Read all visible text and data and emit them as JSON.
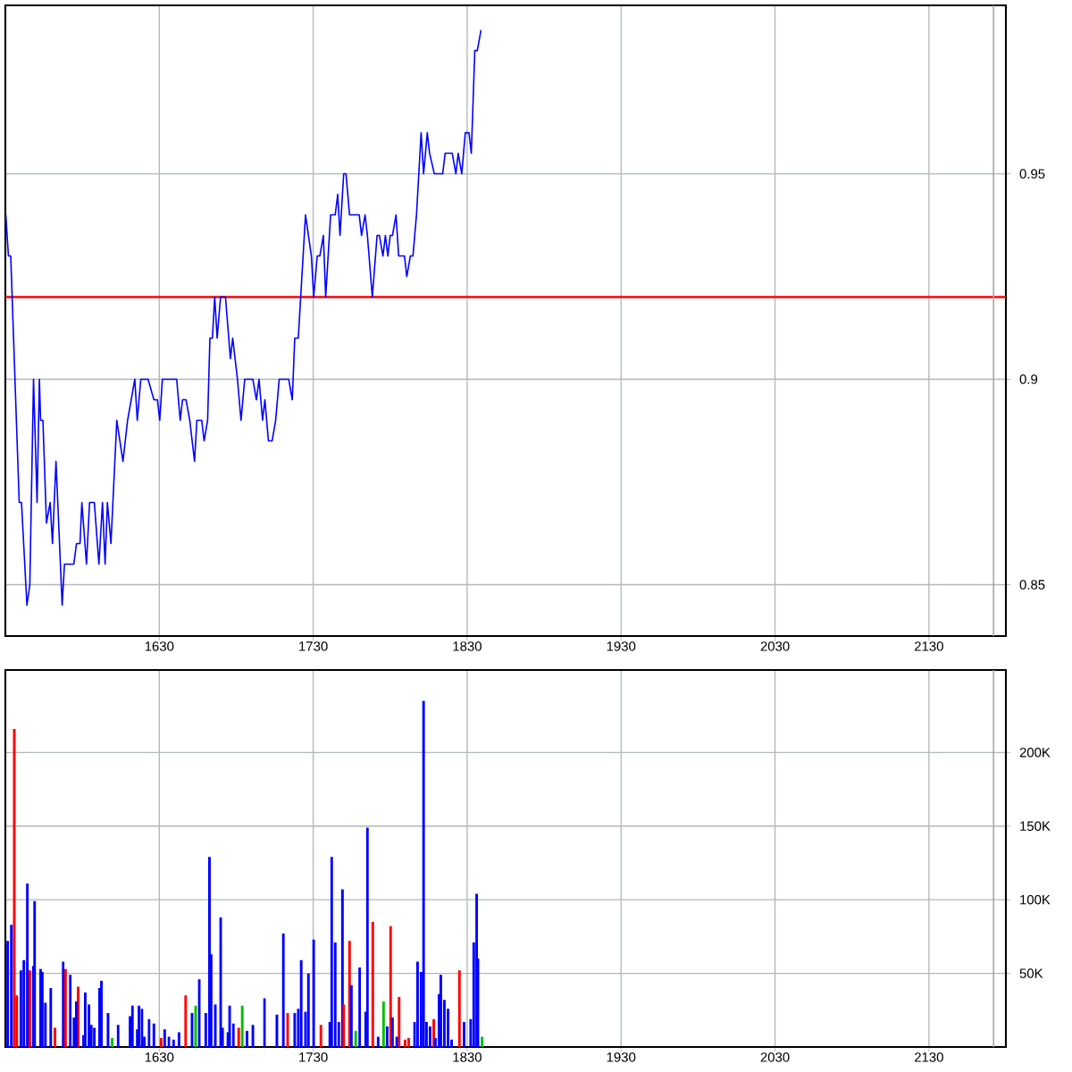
{
  "chart_data": [
    {
      "type": "line",
      "color": "#0000ff",
      "x": [
        1530.3,
        1532,
        1533.5,
        1539,
        1540.5,
        1544,
        1545.9,
        1548.3,
        1550.6,
        1552.1,
        1552.9,
        1554.4,
        1556.7,
        1559.1,
        1560.6,
        1562.9,
        1566.9,
        1568.4,
        1574.5,
        1576.2,
        1578.5,
        1579.7,
        1582.7,
        1584.7,
        1587.8,
        1590.8,
        1593.1,
        1594.8,
        1596.3,
        1598.6,
        1602.4,
        1606.4,
        1609.4,
        1614.1,
        1615.7,
        1618,
        1622.7,
        1626.5,
        1628.8,
        1630.3,
        1632,
        1641.3,
        1643.6,
        1645.1,
        1647.4,
        1649.8,
        1652.9,
        1654.4,
        1657.6,
        1659.1,
        1661.4,
        1662.9,
        1664.5,
        1666,
        1667.6,
        1669.8,
        1673,
        1676.2,
        1677.7,
        1680.8,
        1683.1,
        1685.5,
        1690.8,
        1693.1,
        1694.8,
        1697.1,
        1698.6,
        1700.9,
        1703.3,
        1705.6,
        1707.9,
        1714.1,
        1716.4,
        1718,
        1720.3,
        1725,
        1728.8,
        1730.3,
        1732.6,
        1734.3,
        1736.6,
        1738.1,
        1741.3,
        1744.3,
        1745.9,
        1747.4,
        1749.8,
        1751.3,
        1753.6,
        1759.9,
        1761.4,
        1763.7,
        1765.2,
        1768.4,
        1771.5,
        1773,
        1775.3,
        1776.9,
        1778.5,
        1780,
        1781.5,
        1783.8,
        1785.5,
        1789.3,
        1790.8,
        1793.1,
        1794.8,
        1797.1,
        1800.1,
        1801.7,
        1804.1,
        1805.6,
        1808.7,
        1814.1,
        1815.7,
        1820.3,
        1822.7,
        1824.2,
        1826.5,
        1828.8,
        1831.2,
        1832.7,
        1835,
        1836.6,
        1839
      ],
      "values": [
        0.94,
        0.93,
        0.93,
        0.87,
        0.87,
        0.845,
        0.85,
        0.9,
        0.87,
        0.9,
        0.89,
        0.89,
        0.865,
        0.87,
        0.86,
        0.88,
        0.845,
        0.855,
        0.855,
        0.86,
        0.86,
        0.87,
        0.855,
        0.87,
        0.87,
        0.855,
        0.87,
        0.855,
        0.87,
        0.86,
        0.89,
        0.88,
        0.89,
        0.9,
        0.89,
        0.9,
        0.9,
        0.895,
        0.895,
        0.89,
        0.9,
        0.9,
        0.89,
        0.895,
        0.895,
        0.89,
        0.88,
        0.89,
        0.89,
        0.885,
        0.89,
        0.91,
        0.91,
        0.92,
        0.91,
        0.92,
        0.92,
        0.905,
        0.91,
        0.9,
        0.89,
        0.9,
        0.9,
        0.895,
        0.9,
        0.89,
        0.895,
        0.885,
        0.885,
        0.89,
        0.9,
        0.9,
        0.895,
        0.91,
        0.91,
        0.94,
        0.93,
        0.92,
        0.93,
        0.93,
        0.935,
        0.92,
        0.94,
        0.94,
        0.945,
        0.935,
        0.95,
        0.95,
        0.94,
        0.94,
        0.935,
        0.94,
        0.935,
        0.92,
        0.935,
        0.935,
        0.93,
        0.935,
        0.93,
        0.935,
        0.935,
        0.94,
        0.93,
        0.93,
        0.925,
        0.93,
        0.93,
        0.94,
        0.96,
        0.95,
        0.96,
        0.955,
        0.95,
        0.95,
        0.955,
        0.955,
        0.95,
        0.955,
        0.95,
        0.96,
        0.96,
        0.955,
        0.98,
        0.98,
        0.985
      ],
      "xlim": [
        1530,
        2180
      ],
      "xticks": [
        1630,
        1730,
        1830,
        1930,
        2030,
        2130
      ],
      "ylim": [
        0.8375,
        0.991
      ],
      "yticks": [
        0.85,
        0.9,
        0.95
      ],
      "grid": true,
      "ref_lines": [
        {
          "axis": "y",
          "value": 0.92,
          "color": "#ff0000"
        },
        {
          "axis": "x",
          "value": 2172,
          "color": "#a0a8a8"
        }
      ]
    },
    {
      "type": "bar",
      "x": [
        1531.5,
        1533.9,
        1535.8,
        1537.4,
        1540.1,
        1542,
        1544.3,
        1545.9,
        1548.2,
        1549,
        1552.9,
        1554,
        1556,
        1559.5,
        1562.2,
        1567.6,
        1569.1,
        1572.2,
        1574.6,
        1576.1,
        1577.3,
        1580.8,
        1581.9,
        1584.3,
        1585.8,
        1587.8,
        1591.2,
        1592.4,
        1596.7,
        1599.4,
        1603.3,
        1611,
        1612.6,
        1615.7,
        1616.8,
        1618.8,
        1620.3,
        1623.4,
        1626.5,
        1631.2,
        1633.5,
        1636.2,
        1639.3,
        1642.8,
        1647.1,
        1651.3,
        1653.6,
        1656,
        1660.2,
        1662.6,
        1663.7,
        1666.4,
        1669.9,
        1671.1,
        1674.6,
        1675.7,
        1678.1,
        1681.6,
        1683.9,
        1687,
        1690.8,
        1698.3,
        1706.4,
        1710.6,
        1713.4,
        1718,
        1720.3,
        1722.2,
        1725,
        1726.9,
        1730.3,
        1735,
        1740.8,
        1742,
        1744.3,
        1746.6,
        1749,
        1749.8,
        1753.6,
        1754.8,
        1757.6,
        1760.2,
        1764.1,
        1765.2,
        1768.7,
        1772.2,
        1775.7,
        1778,
        1780.3,
        1781.5,
        1784.3,
        1785.8,
        1789.7,
        1792,
        1795.9,
        1797.8,
        1800.1,
        1801.7,
        1803.6,
        1805.9,
        1808.3,
        1809.4,
        1811.7,
        1812.9,
        1815.2,
        1817.6,
        1819.9,
        1825,
        1828,
        1832.3,
        1834.3,
        1836.2,
        1837,
        1839.7
      ],
      "values": [
        72000,
        83000,
        216000,
        35000,
        52000,
        59000,
        111000,
        52000,
        55000,
        99000,
        53000,
        51000,
        30000,
        40000,
        13000,
        58000,
        53000,
        49000,
        20000,
        31000,
        41000,
        8000,
        37000,
        29000,
        15000,
        13000,
        40000,
        45000,
        23000,
        6000,
        15000,
        21000,
        28000,
        12000,
        28000,
        26000,
        7000,
        19000,
        16000,
        6000,
        12000,
        7000,
        5000,
        10000,
        35000,
        23000,
        28000,
        46000,
        23000,
        129000,
        63000,
        29000,
        88000,
        13000,
        10000,
        28000,
        16000,
        13000,
        28000,
        11000,
        15000,
        33000,
        22000,
        77000,
        23000,
        23000,
        26000,
        59000,
        24000,
        50000,
        73000,
        15000,
        17000,
        129000,
        71000,
        17000,
        107000,
        29000,
        72000,
        42000,
        11000,
        54000,
        24000,
        149000,
        85000,
        7000,
        31000,
        14000,
        82000,
        20000,
        7000,
        34000,
        5000,
        6000,
        17000,
        58000,
        51000,
        235000,
        17000,
        14000,
        19000,
        6000,
        36000,
        49000,
        32000,
        26000,
        5000,
        52000,
        17000,
        19000,
        71000,
        104000,
        60000,
        7000
      ],
      "colors": [
        "#0000ff",
        "#0000ff",
        "#ff0000",
        "#ff0000",
        "#0000ff",
        "#0000ff",
        "#0000ff",
        "#ff0000",
        "#0000ff",
        "#0000ff",
        "#0000ff",
        "#0000ff",
        "#0000ff",
        "#0000ff",
        "#ff0000",
        "#0000ff",
        "#ff0000",
        "#0000ff",
        "#0000ff",
        "#0000ff",
        "#ff0000",
        "#0000ff",
        "#0000ff",
        "#0000ff",
        "#0000ff",
        "#0000ff",
        "#0000ff",
        "#0000ff",
        "#0000ff",
        "#00c000",
        "#0000ff",
        "#0000ff",
        "#0000ff",
        "#0000ff",
        "#0000ff",
        "#0000ff",
        "#0000ff",
        "#0000ff",
        "#0000ff",
        "#ff0000",
        "#0000ff",
        "#0000ff",
        "#0000ff",
        "#0000ff",
        "#ff0000",
        "#0000ff",
        "#00c000",
        "#0000ff",
        "#0000ff",
        "#0000ff",
        "#0000ff",
        "#0000ff",
        "#0000ff",
        "#0000ff",
        "#0000ff",
        "#0000ff",
        "#0000ff",
        "#ff0000",
        "#00c000",
        "#0000ff",
        "#0000ff",
        "#0000ff",
        "#0000ff",
        "#0000ff",
        "#ff0000",
        "#0000ff",
        "#0000ff",
        "#0000ff",
        "#0000ff",
        "#0000ff",
        "#0000ff",
        "#ff0000",
        "#0000ff",
        "#0000ff",
        "#0000ff",
        "#0000ff",
        "#0000ff",
        "#ff0000",
        "#ff0000",
        "#0000ff",
        "#00c000",
        "#0000ff",
        "#0000ff",
        "#0000ff",
        "#ff0000",
        "#0000ff",
        "#00c000",
        "#0000ff",
        "#ff0000",
        "#0000ff",
        "#0000ff",
        "#ff0000",
        "#ff0000",
        "#ff0000",
        "#0000ff",
        "#0000ff",
        "#0000ff",
        "#0000ff",
        "#0000ff",
        "#0000ff",
        "#ff0000",
        "#0000ff",
        "#0000ff",
        "#0000ff",
        "#0000ff",
        "#0000ff",
        "#0000ff",
        "#ff0000",
        "#0000ff",
        "#0000ff",
        "#0000ff",
        "#0000ff",
        "#0000ff",
        "#00c000"
      ],
      "xlim": [
        1530,
        2180
      ],
      "xticks": [
        1630,
        1730,
        1830,
        1930,
        2030,
        2130
      ],
      "ylim": [
        0,
        256000
      ],
      "yticks": [
        {
          "value": 50000,
          "label": "50K"
        },
        {
          "value": 100000,
          "label": "100K"
        },
        {
          "value": 150000,
          "label": "150K"
        },
        {
          "value": 200000,
          "label": "200K"
        }
      ],
      "grid": true,
      "ref_lines": [
        {
          "axis": "x",
          "value": 2172,
          "color": "#a0a8a8"
        }
      ]
    }
  ]
}
